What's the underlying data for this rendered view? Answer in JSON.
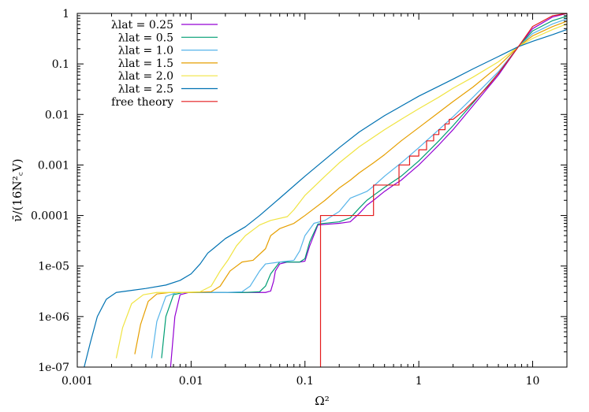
{
  "chart_data": {
    "type": "line",
    "xlabel": "Ω²",
    "ylabel": "ν̄/(16N²꜀V)",
    "x_scale": "log",
    "y_scale": "log",
    "xlim": [
      0.001,
      20
    ],
    "ylim": [
      1e-07,
      1
    ],
    "x_ticks": [
      {
        "value": 0.001,
        "label": "0.001"
      },
      {
        "value": 0.01,
        "label": "0.01"
      },
      {
        "value": 0.1,
        "label": "0.1"
      },
      {
        "value": 1,
        "label": "1"
      },
      {
        "value": 10,
        "label": "10"
      }
    ],
    "y_ticks": [
      {
        "value": 1e-07,
        "label": "1e-07"
      },
      {
        "value": 1e-06,
        "label": "1e-06"
      },
      {
        "value": 1e-05,
        "label": "1e-05"
      },
      {
        "value": 0.0001,
        "label": "0.0001"
      },
      {
        "value": 0.001,
        "label": "0.001"
      },
      {
        "value": 0.01,
        "label": "0.01"
      },
      {
        "value": 0.1,
        "label": "0.1"
      },
      {
        "value": 1,
        "label": "1"
      }
    ],
    "grid": false,
    "legend_position": "top-left",
    "series": [
      {
        "name": "λlat = 0.25",
        "color": "#9400d3",
        "x": [
          0.0066,
          0.0072,
          0.008,
          0.0095,
          0.012,
          0.02,
          0.03,
          0.045,
          0.05,
          0.053,
          0.055,
          0.06,
          0.07,
          0.09,
          0.1,
          0.11,
          0.13,
          0.2,
          0.25,
          0.3,
          0.35,
          0.4,
          0.5,
          0.6,
          0.7,
          0.8,
          1.0,
          1.2,
          1.5,
          2.0,
          3.0,
          5.0,
          7.5,
          10,
          15,
          20
        ],
        "y": [
          1e-07,
          1e-06,
          2.7e-06,
          3e-06,
          3e-06,
          3e-06,
          3e-06,
          3e-06,
          3.2e-06,
          5e-06,
          8e-06,
          1.1e-05,
          1.2e-05,
          1.2e-05,
          1.25e-05,
          2.5e-05,
          6.5e-05,
          7e-05,
          7.5e-05,
          0.00011,
          0.00016,
          0.0002,
          0.0003,
          0.0004,
          0.0005,
          0.00065,
          0.001,
          0.0015,
          0.0025,
          0.005,
          0.015,
          0.06,
          0.22,
          0.5,
          0.85,
          1.0
        ]
      },
      {
        "name": "λlat = 0.5",
        "color": "#009e73",
        "x": [
          0.0055,
          0.006,
          0.007,
          0.0085,
          0.012,
          0.02,
          0.03,
          0.04,
          0.045,
          0.05,
          0.06,
          0.09,
          0.1,
          0.11,
          0.13,
          0.2,
          0.25,
          0.3,
          0.35,
          0.4,
          0.5,
          0.7,
          1.0,
          1.5,
          2.0,
          3.0,
          5.0,
          7.5,
          10,
          15,
          20
        ],
        "y": [
          1.5e-07,
          1e-06,
          2.7e-06,
          3e-06,
          3e-06,
          3e-06,
          3e-06,
          3.1e-06,
          4e-06,
          7e-06,
          1.2e-05,
          1.2e-05,
          1.4e-05,
          3e-05,
          6.8e-05,
          7.5e-05,
          9e-05,
          0.00014,
          0.0002,
          0.00025,
          0.00036,
          0.0006,
          0.0012,
          0.003,
          0.006,
          0.017,
          0.065,
          0.22,
          0.45,
          0.72,
          0.88
        ]
      },
      {
        "name": "λlat = 1.0",
        "color": "#56b4e9",
        "x": [
          0.0045,
          0.005,
          0.006,
          0.0075,
          0.01,
          0.02,
          0.028,
          0.033,
          0.04,
          0.045,
          0.06,
          0.08,
          0.09,
          0.1,
          0.12,
          0.15,
          0.2,
          0.25,
          0.3,
          0.35,
          0.4,
          0.5,
          0.7,
          1.0,
          1.5,
          2.0,
          3.0,
          5.0,
          7.5,
          10,
          15,
          20
        ],
        "y": [
          1.5e-07,
          8e-07,
          2.5e-06,
          3e-06,
          3e-06,
          3e-06,
          3.1e-06,
          4e-06,
          8e-06,
          1.1e-05,
          1.2e-05,
          1.3e-05,
          2e-05,
          4e-05,
          7e-05,
          8e-05,
          0.00012,
          0.00022,
          0.00026,
          0.0003,
          0.00038,
          0.0006,
          0.0011,
          0.0022,
          0.005,
          0.009,
          0.022,
          0.07,
          0.22,
          0.4,
          0.62,
          0.78
        ]
      },
      {
        "name": "λlat = 1.5",
        "color": "#e69f00",
        "x": [
          0.0032,
          0.0036,
          0.0042,
          0.005,
          0.0065,
          0.01,
          0.015,
          0.018,
          0.022,
          0.028,
          0.035,
          0.045,
          0.05,
          0.06,
          0.08,
          0.1,
          0.15,
          0.2,
          0.25,
          0.3,
          0.4,
          0.5,
          0.7,
          1.0,
          1.5,
          2.0,
          3.0,
          5.0,
          7.5,
          10,
          15,
          20
        ],
        "y": [
          1.8e-07,
          7e-07,
          2e-06,
          2.8e-06,
          3e-06,
          3e-06,
          3.1e-06,
          4e-06,
          8e-06,
          1.2e-05,
          1.3e-05,
          2.2e-05,
          4e-05,
          5.5e-05,
          7e-05,
          0.0001,
          0.0002,
          0.00035,
          0.0005,
          0.0007,
          0.0011,
          0.0016,
          0.003,
          0.0055,
          0.011,
          0.018,
          0.035,
          0.09,
          0.22,
          0.36,
          0.55,
          0.7
        ]
      },
      {
        "name": "λlat = 2.0",
        "color": "#f0e442",
        "x": [
          0.0022,
          0.0025,
          0.003,
          0.0038,
          0.005,
          0.008,
          0.012,
          0.015,
          0.018,
          0.021,
          0.025,
          0.03,
          0.04,
          0.05,
          0.07,
          0.08,
          0.1,
          0.15,
          0.2,
          0.3,
          0.5,
          0.7,
          1.0,
          1.5,
          2.0,
          3.0,
          5.0,
          7.5,
          10,
          15,
          20
        ],
        "y": [
          1.5e-07,
          6e-07,
          1.8e-06,
          2.7e-06,
          3e-06,
          3e-06,
          3.1e-06,
          4e-06,
          8e-06,
          1.3e-05,
          2.5e-05,
          4e-05,
          6.5e-05,
          8e-05,
          9.5e-05,
          0.00013,
          0.00025,
          0.0006,
          0.0011,
          0.0023,
          0.005,
          0.008,
          0.013,
          0.022,
          0.033,
          0.055,
          0.11,
          0.22,
          0.32,
          0.48,
          0.62
        ]
      },
      {
        "name": "λlat = 2.5",
        "color": "#0072b2",
        "x": [
          0.00115,
          0.0013,
          0.0015,
          0.0018,
          0.0022,
          0.003,
          0.004,
          0.006,
          0.008,
          0.01,
          0.012,
          0.014,
          0.016,
          0.02,
          0.03,
          0.04,
          0.06,
          0.1,
          0.2,
          0.3,
          0.5,
          1.0,
          2.0,
          3.0,
          5.0,
          7.5,
          10,
          15,
          20
        ],
        "y": [
          1e-07,
          3e-07,
          1e-06,
          2.2e-06,
          3e-06,
          3.3e-06,
          3.6e-06,
          4.2e-06,
          5.2e-06,
          7e-06,
          1.1e-05,
          1.8e-05,
          2.3e-05,
          3.5e-05,
          6e-05,
          0.0001,
          0.00022,
          0.0006,
          0.0022,
          0.0045,
          0.0095,
          0.023,
          0.05,
          0.08,
          0.14,
          0.22,
          0.28,
          0.38,
          0.48
        ]
      },
      {
        "name": "free theory",
        "color": "#e41a1c",
        "x": [
          0.137,
          0.137,
          0.4,
          0.4,
          0.67,
          0.67,
          0.83,
          0.83,
          1.0,
          1.0,
          1.17,
          1.17,
          1.35,
          1.35,
          1.5,
          1.5,
          1.7,
          1.7,
          1.85,
          1.85,
          2.0,
          2.5,
          3.0,
          4.0,
          5.0,
          7.5,
          10,
          15,
          20
        ],
        "y": [
          1e-07,
          0.0001,
          0.0001,
          0.0004,
          0.0004,
          0.001,
          0.001,
          0.0015,
          0.0015,
          0.002,
          0.002,
          0.003,
          0.003,
          0.004,
          0.004,
          0.005,
          0.005,
          0.0065,
          0.0065,
          0.008,
          0.008,
          0.012,
          0.018,
          0.035,
          0.065,
          0.22,
          0.55,
          0.9,
          1.0
        ]
      }
    ]
  }
}
